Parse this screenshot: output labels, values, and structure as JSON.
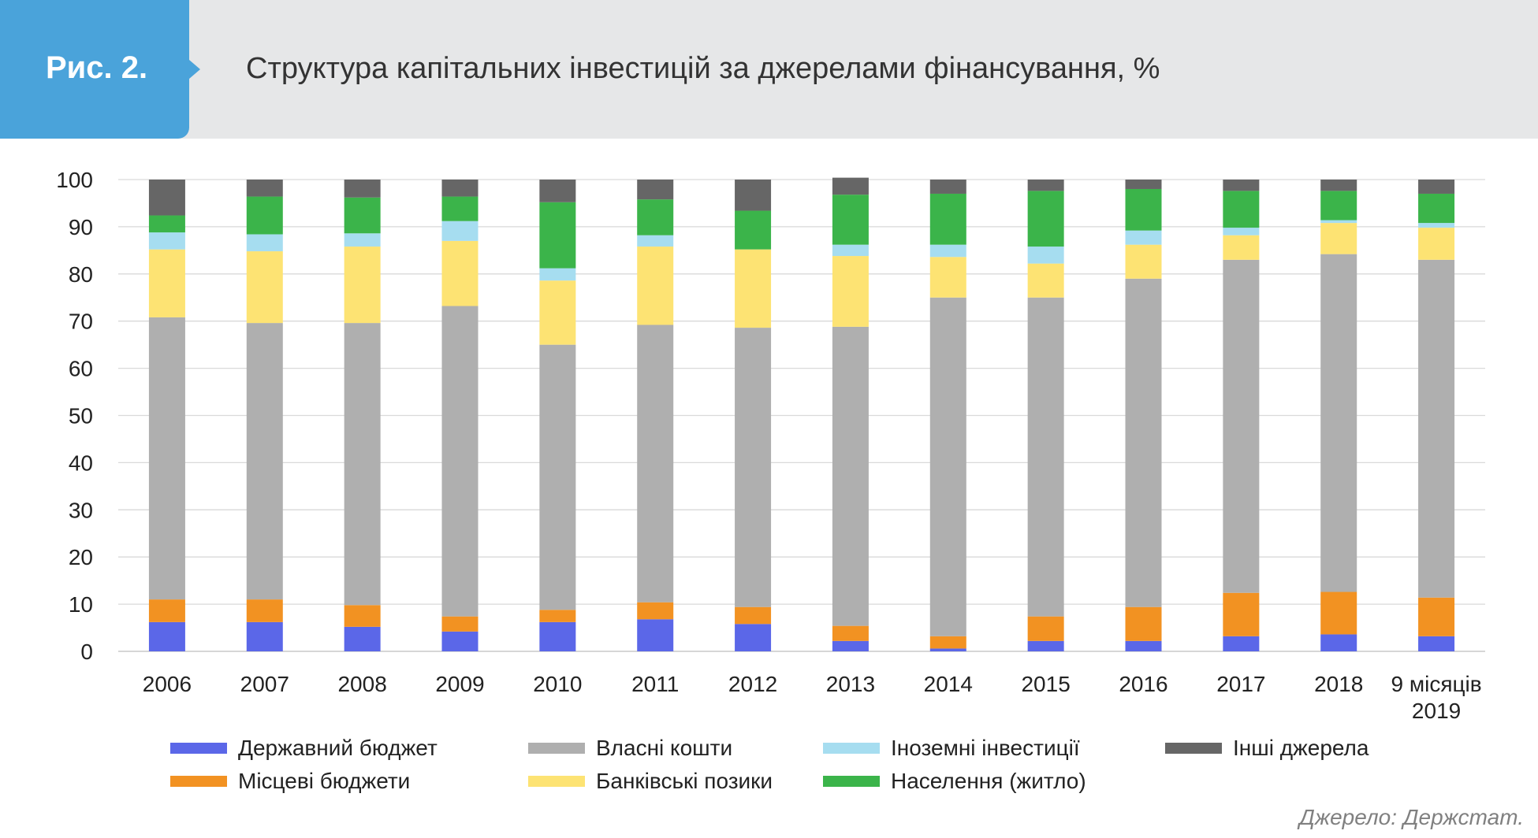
{
  "header": {
    "fig_label": "Рис. 2.",
    "title": "Структура капітальних інвестицій за джерелами фінансування, %"
  },
  "source": "Джерело: Держстат.",
  "chart_data": {
    "type": "bar",
    "stacked": true,
    "categories": [
      "2006",
      "2007",
      "2008",
      "2009",
      "2010",
      "2011",
      "2012",
      "2013",
      "2014",
      "2015",
      "2016",
      "2017",
      "2018",
      "9 місяців 2019"
    ],
    "ylim": [
      0,
      100
    ],
    "yticks": [
      0,
      10,
      20,
      30,
      40,
      50,
      60,
      70,
      80,
      90,
      100
    ],
    "grid": true,
    "legend_position": "bottom",
    "series": [
      {
        "name": "Державний бюджет",
        "color": "#5b67e8",
        "values": [
          6.2,
          6.2,
          5.2,
          4.2,
          6.2,
          6.8,
          5.8,
          2.2,
          0.6,
          2.2,
          2.2,
          3.2,
          3.6,
          3.2
        ]
      },
      {
        "name": "Місцеві бюджети",
        "color": "#f29222",
        "values": [
          4.8,
          4.8,
          4.6,
          3.2,
          2.6,
          3.6,
          3.6,
          3.2,
          2.6,
          5.2,
          7.2,
          9.2,
          9.0,
          8.2
        ]
      },
      {
        "name": "Власні кошти",
        "color": "#afafaf",
        "values": [
          59.8,
          58.6,
          59.8,
          65.8,
          56.2,
          58.8,
          59.2,
          63.4,
          71.8,
          67.6,
          69.6,
          70.6,
          71.6,
          71.6
        ]
      },
      {
        "name": "Банківські позики",
        "color": "#fde373",
        "values": [
          14.4,
          15.2,
          16.2,
          13.8,
          13.6,
          16.6,
          16.6,
          15.0,
          8.6,
          7.2,
          7.2,
          5.2,
          6.6,
          6.8
        ]
      },
      {
        "name": "Іноземні інвестиції",
        "color": "#a6ddf0",
        "values": [
          3.6,
          3.6,
          2.8,
          4.2,
          2.6,
          2.4,
          0.0,
          2.4,
          2.6,
          3.6,
          3.0,
          1.6,
          0.6,
          1.0
        ]
      },
      {
        "name": "Населення (житло)",
        "color": "#3bb44a",
        "values": [
          3.6,
          8.0,
          7.6,
          5.2,
          14.0,
          7.6,
          8.2,
          10.6,
          10.8,
          11.8,
          8.8,
          7.8,
          6.2,
          6.2
        ]
      },
      {
        "name": "Інші джерела",
        "color": "#666666",
        "values": [
          7.6,
          3.6,
          3.8,
          3.6,
          4.8,
          4.2,
          6.6,
          3.6,
          3.0,
          2.4,
          2.0,
          2.4,
          2.4,
          3.0
        ]
      }
    ]
  },
  "legend": [
    {
      "label": "Державний бюджет",
      "color": "#5b67e8"
    },
    {
      "label": "Власні кошти",
      "color": "#afafaf"
    },
    {
      "label": "Іноземні інвестиції",
      "color": "#a6ddf0"
    },
    {
      "label": "Інші джерела",
      "color": "#666666"
    },
    {
      "label": "Місцеві бюджети",
      "color": "#f29222"
    },
    {
      "label": "Банківські позики",
      "color": "#fde373"
    },
    {
      "label": "Населення (житло)",
      "color": "#3bb44a"
    }
  ]
}
